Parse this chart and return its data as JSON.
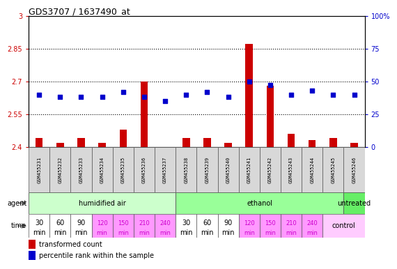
{
  "title": "GDS3707 / 1637490_at",
  "samples": [
    "GSM455231",
    "GSM455232",
    "GSM455233",
    "GSM455234",
    "GSM455235",
    "GSM455236",
    "GSM455237",
    "GSM455238",
    "GSM455239",
    "GSM455240",
    "GSM455241",
    "GSM455242",
    "GSM455243",
    "GSM455244",
    "GSM455245",
    "GSM455246"
  ],
  "red_values": [
    2.44,
    2.42,
    2.44,
    2.42,
    2.48,
    2.7,
    2.4,
    2.44,
    2.44,
    2.42,
    2.87,
    2.68,
    2.46,
    2.43,
    2.44,
    2.42
  ],
  "blue_values": [
    40,
    38,
    38,
    38,
    42,
    38,
    35,
    40,
    42,
    38,
    50,
    47,
    40,
    43,
    40,
    40
  ],
  "ylim_left": [
    2.4,
    3.0
  ],
  "ylim_right": [
    0,
    100
  ],
  "yticks_left": [
    2.4,
    2.55,
    2.7,
    2.85,
    3.0
  ],
  "yticks_right": [
    0,
    25,
    50,
    75,
    100
  ],
  "ytick_labels_left": [
    "2.4",
    "2.55",
    "2.7",
    "2.85",
    "3"
  ],
  "ytick_labels_right": [
    "0",
    "25",
    "50",
    "75",
    "100%"
  ],
  "hlines": [
    2.55,
    2.7,
    2.85
  ],
  "agent_groups": [
    {
      "label": "humidified air",
      "start": 0,
      "end": 7,
      "color": "#ccffcc"
    },
    {
      "label": "ethanol",
      "start": 7,
      "end": 15,
      "color": "#99ff99"
    },
    {
      "label": "untreated",
      "start": 15,
      "end": 16,
      "color": "#66ee66"
    }
  ],
  "bar_color": "#cc0000",
  "dot_color": "#0000cc",
  "bar_width": 0.35,
  "dot_size": 25,
  "background_color": "#ffffff",
  "tick_color_left": "#cc0000",
  "tick_color_right": "#0000cc",
  "legend_red": "transformed count",
  "legend_blue": "percentile rank within the sample",
  "time_white_color": "#ffffff",
  "time_pink_color": "#ff99ff",
  "time_control_color": "#ffccff",
  "agent_label_color": "#666666",
  "sample_cell_color": "#d8d8d8"
}
